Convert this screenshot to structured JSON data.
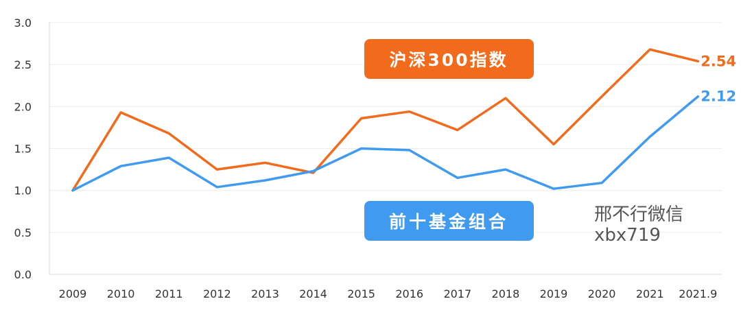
{
  "chart_data": {
    "type": "line",
    "categories": [
      "2009",
      "2010",
      "2011",
      "2012",
      "2013",
      "2014",
      "2015",
      "2016",
      "2017",
      "2018",
      "2019",
      "2020",
      "2021",
      "2021.9"
    ],
    "ylim": [
      0,
      3
    ],
    "yticks": [
      "0.0",
      "0.5",
      "1.0",
      "1.5",
      "2.0",
      "2.5",
      "3.0"
    ],
    "grid": true,
    "series": [
      {
        "name": "沪深300指数",
        "color": "#F26A1B",
        "values": [
          1.0,
          1.93,
          1.68,
          1.25,
          1.33,
          1.21,
          1.86,
          1.94,
          1.72,
          2.1,
          1.55,
          2.12,
          2.68,
          2.54
        ],
        "end_label": "2.54"
      },
      {
        "name": "前十基金组合",
        "color": "#3F9AF0",
        "values": [
          1.0,
          1.29,
          1.39,
          1.04,
          1.12,
          1.23,
          1.5,
          1.48,
          1.15,
          1.25,
          1.02,
          1.09,
          1.64,
          2.12
        ],
        "end_label": "2.12"
      }
    ]
  },
  "watermark": {
    "line1": "邢不行微信",
    "line2": "xbx719"
  }
}
